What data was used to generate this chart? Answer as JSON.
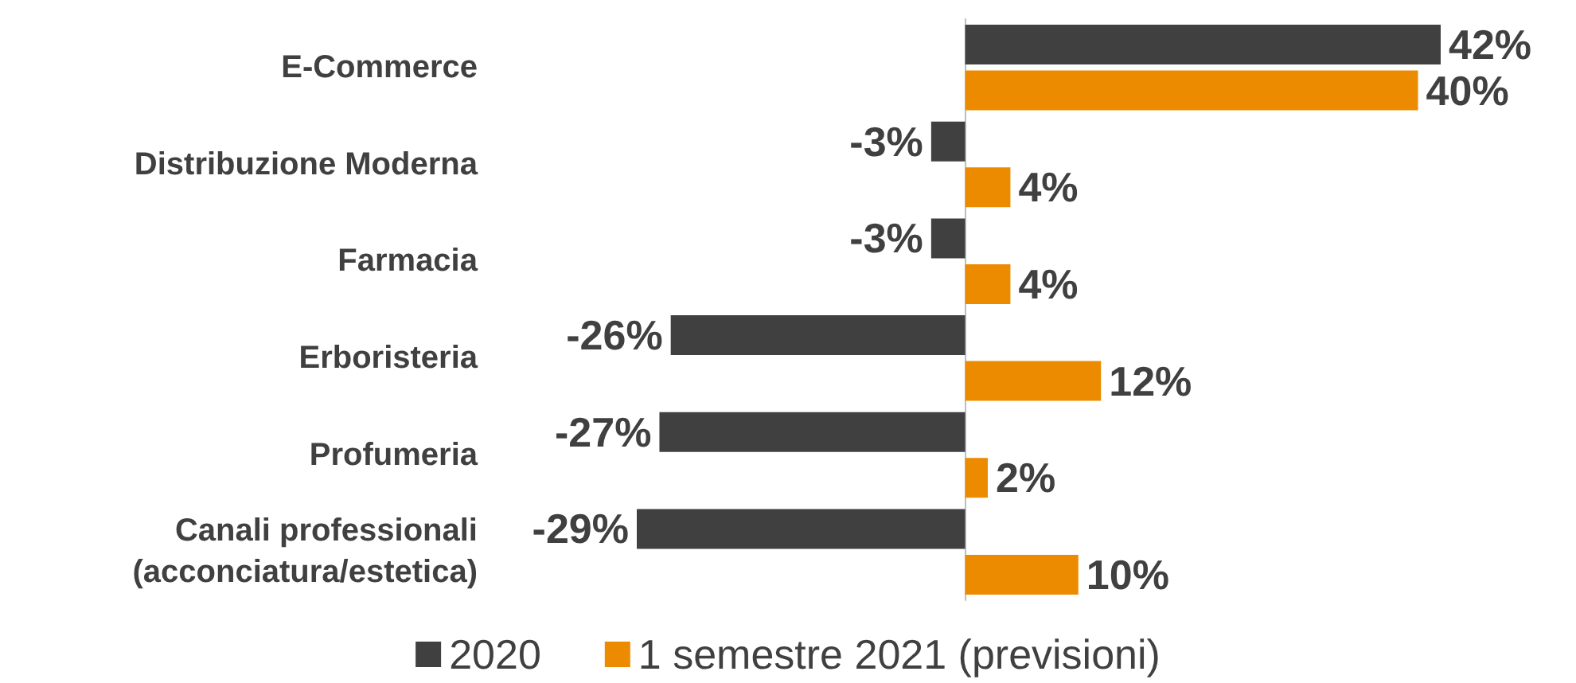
{
  "chart_data": {
    "type": "bar",
    "orientation": "horizontal",
    "categories": [
      "E-Commerce",
      "Distribuzione Moderna",
      "Farmacia",
      "Erboristeria",
      "Profumeria",
      "Canali professionali\n(acconciatura/estetica)"
    ],
    "series": [
      {
        "name": "2020",
        "color": "#404040",
        "values": [
          42,
          -3,
          -3,
          -26,
          -27,
          -29
        ],
        "value_labels": [
          "42%",
          "-3%",
          "-3%",
          "-26%",
          "-27%",
          "-29%"
        ]
      },
      {
        "name": "1 semestre 2021 (previsioni)",
        "color": "#ed8b00",
        "values": [
          40,
          4,
          4,
          12,
          2,
          10
        ],
        "value_labels": [
          "40%",
          "4%",
          "4%",
          "12%",
          "2%",
          "10%"
        ]
      }
    ],
    "legend": "bottom",
    "tick_labels": "y"
  }
}
